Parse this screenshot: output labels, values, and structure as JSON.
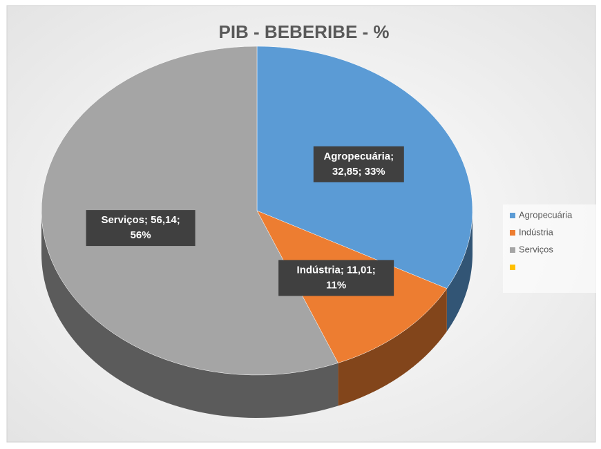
{
  "chart_data": {
    "type": "pie3d",
    "title": "PIB - BEBERIBE - %",
    "categories": [
      "Agropecuária",
      "Indústria",
      "Serviços",
      null
    ],
    "values": [
      32.85,
      11.01,
      56.14,
      null
    ],
    "value_labels": [
      [
        "Agropecuária;",
        "32,85; 33%"
      ],
      [
        "Indústria; 11,01;",
        "11%"
      ],
      [
        "Serviços; 56,14;",
        "56%"
      ],
      null
    ],
    "colors": [
      "#5b9bd5",
      "#ed7d31",
      "#a5a5a5",
      "#ffc000"
    ],
    "legend": "right"
  }
}
